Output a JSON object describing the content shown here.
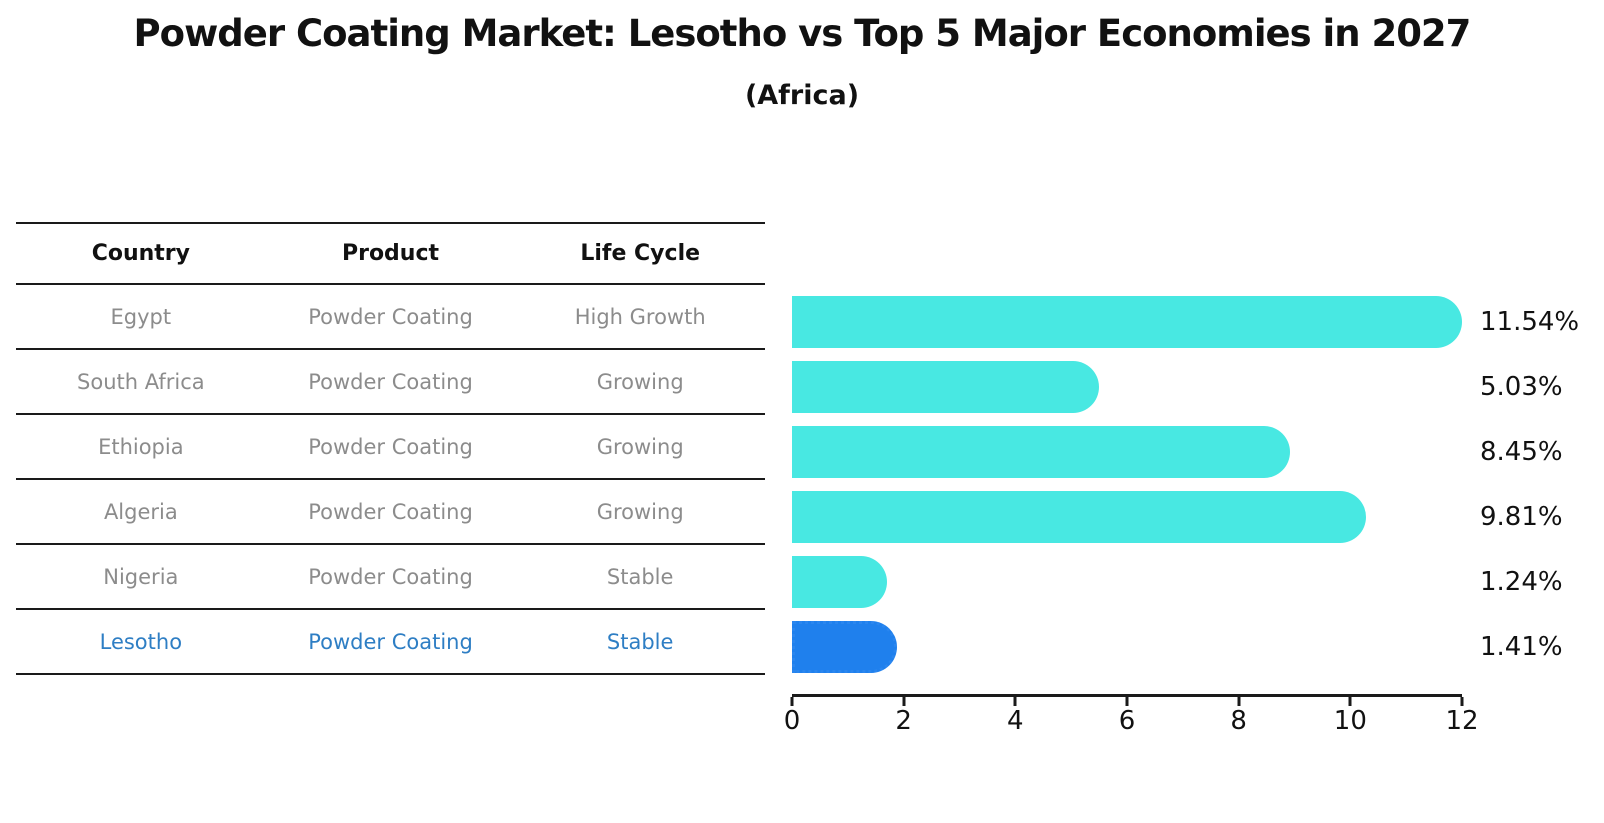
{
  "title": "Powder Coating Market: Lesotho vs Top 5 Major Economies in 2027",
  "subtitle": "(Africa)",
  "table": {
    "headers": [
      "Country",
      "Product",
      "Life Cycle"
    ],
    "rows": [
      {
        "country": "Egypt",
        "product": "Powder Coating",
        "life_cycle": "High Growth",
        "highlighted": false
      },
      {
        "country": "South Africa",
        "product": "Powder Coating",
        "life_cycle": "Growing",
        "highlighted": false
      },
      {
        "country": "Ethiopia",
        "product": "Powder Coating",
        "life_cycle": "Growing",
        "highlighted": false
      },
      {
        "country": "Algeria",
        "product": "Powder Coating",
        "life_cycle": "Growing",
        "highlighted": false
      },
      {
        "country": "Nigeria",
        "product": "Powder Coating",
        "life_cycle": "Stable",
        "highlighted": false
      },
      {
        "country": "Lesotho",
        "product": "Powder Coating",
        "life_cycle": "Stable",
        "highlighted": true
      }
    ]
  },
  "chart_data": {
    "type": "bar",
    "orientation": "horizontal",
    "title": "Powder Coating Market: Lesotho vs Top 5 Major Economies in 2027",
    "subtitle": "(Africa)",
    "categories": [
      "Egypt",
      "South Africa",
      "Ethiopia",
      "Algeria",
      "Nigeria",
      "Lesotho"
    ],
    "values": [
      11.54,
      5.03,
      8.45,
      9.81,
      1.24,
      1.41
    ],
    "value_labels": [
      "11.54%",
      "5.03%",
      "8.45%",
      "9.81%",
      "1.24%",
      "1.41%"
    ],
    "highlight_category": "Lesotho",
    "xlabel": "",
    "ylabel": "",
    "xlim": [
      0,
      12
    ],
    "xticks": [
      0,
      2,
      4,
      6,
      8,
      10,
      12
    ],
    "xtick_labels": [
      "0",
      "2",
      "4",
      "6",
      "8",
      "10",
      "12"
    ],
    "grid": false,
    "legend": false
  },
  "colors": {
    "bar": "#48e8e2",
    "highlight_bar": "#1f80ed",
    "highlight_text": "#2e7ec4",
    "table_text": "#8c8c8c",
    "header_text": "#111111",
    "line": "#1a1a1a"
  }
}
